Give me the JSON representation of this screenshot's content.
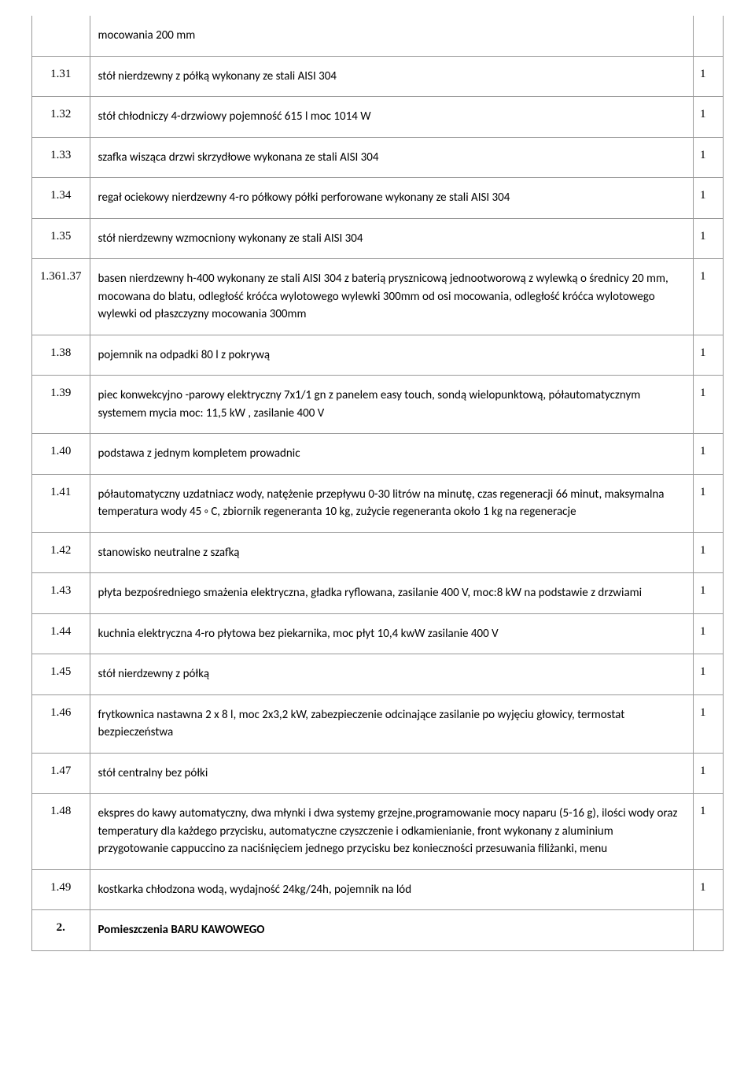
{
  "table": {
    "rows": [
      {
        "num": "",
        "desc": "mocowania 200 mm",
        "qty": "",
        "first": true
      },
      {
        "num": "1.31",
        "desc": "stół nierdzewny z półką wykonany ze stali AISI 304",
        "qty": "1"
      },
      {
        "num": "1.32",
        "desc": "stół chłodniczy 4-drzwiowy pojemność 615 l moc 1014 W",
        "qty": "1"
      },
      {
        "num": "1.33",
        "desc": "szafka wisząca drzwi skrzydłowe wykonana ze stali AISI 304",
        "qty": "1"
      },
      {
        "num": "1.34",
        "desc": "regał ociekowy nierdzewny 4-ro półkowy półki perforowane wykonany ze stali AISI 304",
        "qty": "1"
      },
      {
        "num": "1.35",
        "desc": "stół nierdzewny wzmocniony wykonany ze stali AISI 304",
        "qty": "1"
      },
      {
        "num": "1.361.37",
        "desc": "basen nierdzewny h-400 wykonany ze stali AISI 304 z baterią prysznicową jednootworową z wylewką o średnicy 20 mm, mocowana do blatu, odległość króćca wylotowego wylewki 300mm od osi mocowania, odległość króćca wylotowego wylewki od płaszczyzny mocowania 300mm",
        "qty": "1"
      },
      {
        "num": "1.38",
        "desc": "pojemnik na odpadki 80 l z pokrywą",
        "qty": "1"
      },
      {
        "num": "1.39",
        "desc": "piec konwekcyjno -parowy elektryczny 7x1/1 gn z panelem easy touch, sondą wielopunktową, półautomatycznym systemem mycia moc: 11,5 kW , zasilanie 400 V",
        "qty": "1"
      },
      {
        "num": "1.40",
        "desc": "podstawa z jednym kompletem prowadnic",
        "qty": "1"
      },
      {
        "num": "1.41",
        "desc": "półautomatyczny uzdatniacz wody, natężenie przepływu 0-30 litrów na minutę, czas regeneracji 66 minut, maksymalna temperatura wody 45 ◦ C, zbiornik regeneranta 10 kg, zużycie regeneranta około 1 kg na regeneracje",
        "qty": "1"
      },
      {
        "num": "1.42",
        "desc": "stanowisko neutralne z szafką",
        "qty": "1"
      },
      {
        "num": "1.43",
        "desc": "płyta bezpośredniego smażenia elektryczna, gładka ryflowana, zasilanie 400 V, moc:8 kW na podstawie z drzwiami",
        "qty": "1"
      },
      {
        "num": "1.44",
        "desc": "kuchnia elektryczna 4-ro płytowa bez piekarnika, moc płyt 10,4 kwW zasilanie 400 V",
        "qty": "1"
      },
      {
        "num": "1.45",
        "desc": "stół nierdzewny z półką",
        "qty": "1"
      },
      {
        "num": "1.46",
        "desc": "frytkownica nastawna 2 x 8 l, moc 2x3,2 kW, zabezpieczenie odcinające zasilanie po wyjęciu głowicy, termostat bezpieczeństwa",
        "qty": "1"
      },
      {
        "num": "1.47",
        "desc": "stół centralny bez półki",
        "qty": "1"
      },
      {
        "num": "1.48",
        "desc": "ekspres do kawy automatyczny, dwa młynki i dwa systemy grzejne,programowanie mocy naparu (5-16 g), ilości wody oraz temperatury dla każdego przycisku, automatyczne czyszczenie i odkamienianie, front wykonany z aluminium przygotowanie cappuccino za naciśnięciem jednego przycisku bez konieczności przesuwania filiżanki, menu",
        "qty": "1"
      },
      {
        "num": "1.49",
        "desc": "kostkarka chłodzona wodą, wydajność 24kg/24h, pojemnik na lód",
        "qty": "1"
      },
      {
        "num": "2.",
        "desc": "Pomieszczenia BARU KAWOWEGO",
        "qty": "",
        "bold": true
      }
    ]
  }
}
